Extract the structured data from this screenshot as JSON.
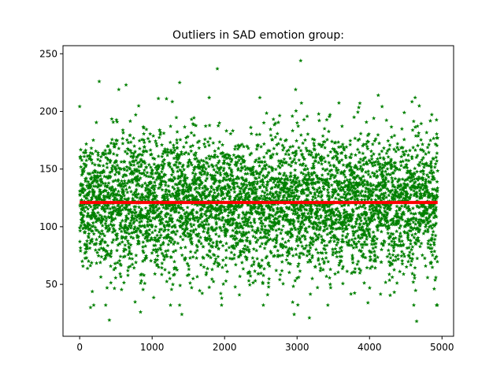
{
  "chart_data": {
    "type": "scatter",
    "title": "Outliers in SAD emotion group:",
    "xlabel": "",
    "ylabel": "",
    "xlim": [
      -230,
      5160
    ],
    "ylim": [
      5,
      257
    ],
    "xticks": [
      0,
      1000,
      2000,
      3000,
      4000,
      5000
    ],
    "yticks": [
      50,
      100,
      150,
      200,
      250
    ],
    "grid": false,
    "legend": "none",
    "series": [
      {
        "kind": "scatter",
        "marker": "star",
        "color": "#008000",
        "n_points": 4940,
        "x_range": [
          0,
          4940
        ],
        "center": 121,
        "spread_sd": 30,
        "notable_points": [
          {
            "x": 1900,
            "y": 237
          },
          {
            "x": 3050,
            "y": 244
          },
          {
            "x": 270,
            "y": 226
          },
          {
            "x": 1380,
            "y": 225
          },
          {
            "x": 640,
            "y": 223
          },
          {
            "x": 2980,
            "y": 219
          },
          {
            "x": 540,
            "y": 219
          },
          {
            "x": 4120,
            "y": 214
          },
          {
            "x": 410,
            "y": 19
          },
          {
            "x": 4650,
            "y": 18
          },
          {
            "x": 3170,
            "y": 21
          },
          {
            "x": 2960,
            "y": 24
          },
          {
            "x": 1410,
            "y": 24
          },
          {
            "x": 840,
            "y": 26
          },
          {
            "x": 150,
            "y": 30
          }
        ]
      },
      {
        "kind": "line",
        "color": "#ff0000",
        "x": [
          0,
          4940
        ],
        "y": [
          121,
          121
        ]
      }
    ]
  }
}
